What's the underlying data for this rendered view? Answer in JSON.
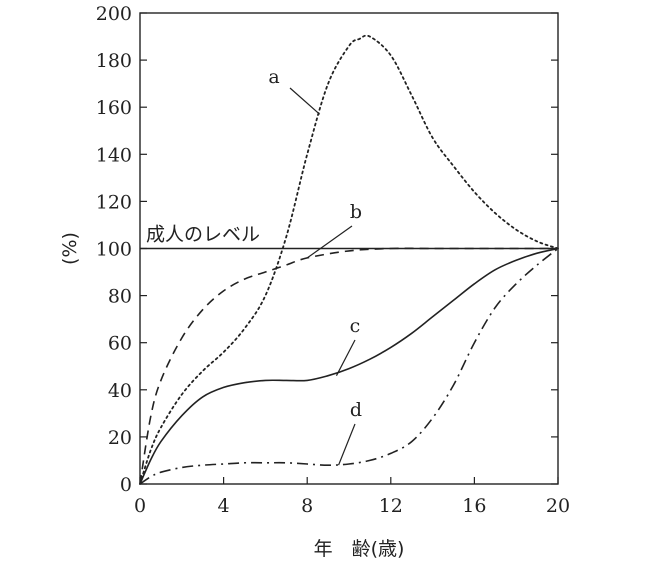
{
  "chart_data": {
    "type": "line",
    "xlabel": "年　齢(歳)",
    "ylabel": "(%)",
    "xlim": [
      0,
      20
    ],
    "ylim": [
      0,
      200
    ],
    "xticks": [
      0,
      4,
      8,
      12,
      16,
      20
    ],
    "yticks": [
      0,
      20,
      40,
      60,
      80,
      100,
      120,
      140,
      160,
      180,
      200
    ],
    "grid": false,
    "reference_line": {
      "y": 100,
      "label": "成人のレベル"
    },
    "series": [
      {
        "name": "a",
        "dash": "dotted",
        "x": [
          0,
          0.5,
          1,
          2,
          3,
          4,
          5,
          6,
          7,
          8,
          9,
          10,
          10.5,
          11,
          12,
          13,
          14,
          15,
          16,
          17,
          18,
          19,
          20
        ],
        "y": [
          0,
          14,
          24,
          38,
          48,
          56,
          66,
          80,
          105,
          140,
          170,
          186,
          189,
          190,
          182,
          165,
          147,
          135,
          124,
          115,
          108,
          103,
          100
        ]
      },
      {
        "name": "b",
        "dash": "dashed",
        "x": [
          0,
          0.5,
          1,
          2,
          3,
          4,
          5,
          6,
          7,
          8,
          10,
          12,
          14,
          16,
          18,
          20
        ],
        "y": [
          0,
          28,
          44,
          62,
          74,
          82,
          87,
          90,
          93,
          96,
          99,
          100,
          100,
          100,
          100,
          100
        ]
      },
      {
        "name": "c",
        "dash": "solid",
        "x": [
          0,
          0.5,
          1,
          2,
          3,
          4,
          5,
          6,
          7,
          8,
          9,
          10,
          11,
          12,
          13,
          14,
          15,
          16,
          17,
          18,
          19,
          20
        ],
        "y": [
          0,
          10,
          18,
          29,
          37,
          41,
          43,
          44,
          44,
          44,
          46,
          49,
          53,
          58,
          64,
          71,
          78,
          85,
          91,
          95,
          98,
          100
        ]
      },
      {
        "name": "d",
        "dash": "dashdot",
        "x": [
          0,
          0.5,
          1,
          2,
          3,
          4,
          5,
          6,
          7,
          8,
          9,
          10,
          11,
          12,
          13,
          14,
          15,
          16,
          17,
          18,
          19,
          20
        ],
        "y": [
          0,
          3,
          5,
          7,
          8,
          8.5,
          9,
          9,
          9,
          8.5,
          8,
          8.5,
          10,
          13,
          18,
          28,
          42,
          60,
          75,
          85,
          93,
          100
        ]
      }
    ]
  }
}
